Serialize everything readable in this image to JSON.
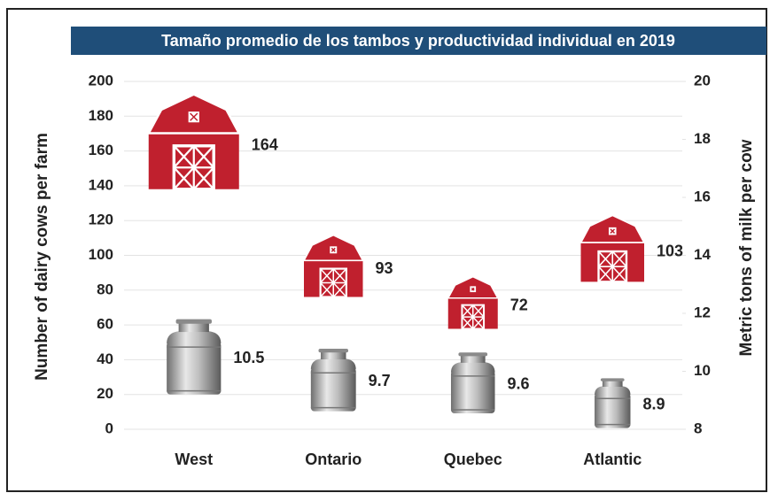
{
  "chart_data": {
    "type": "pictogram",
    "title": "Tamaño promedio de los tambos y productividad individual en 2019",
    "ylabel": "Number of dairy cows per farm",
    "y2label": "Metric tons of milk per cow",
    "categories": [
      "West",
      "Ontario",
      "Quebec",
      "Atlantic"
    ],
    "series": [
      {
        "name": "Number of dairy cows per farm",
        "icon": "barn",
        "color": "#c0202e",
        "values": [
          164,
          93,
          72,
          103
        ]
      },
      {
        "name": "Metric tons of milk per cow",
        "icon": "milk-can",
        "color": "#b0b0b0",
        "axis": "y2",
        "values": [
          10.5,
          9.7,
          9.6,
          8.9
        ]
      }
    ],
    "ylim": [
      0,
      200
    ],
    "yticks": [
      0,
      20,
      40,
      60,
      80,
      100,
      120,
      140,
      160,
      180,
      200
    ],
    "y2lim": [
      8,
      20
    ],
    "y2ticks": [
      8,
      10,
      12,
      14,
      16,
      18,
      20
    ],
    "grid": true
  }
}
